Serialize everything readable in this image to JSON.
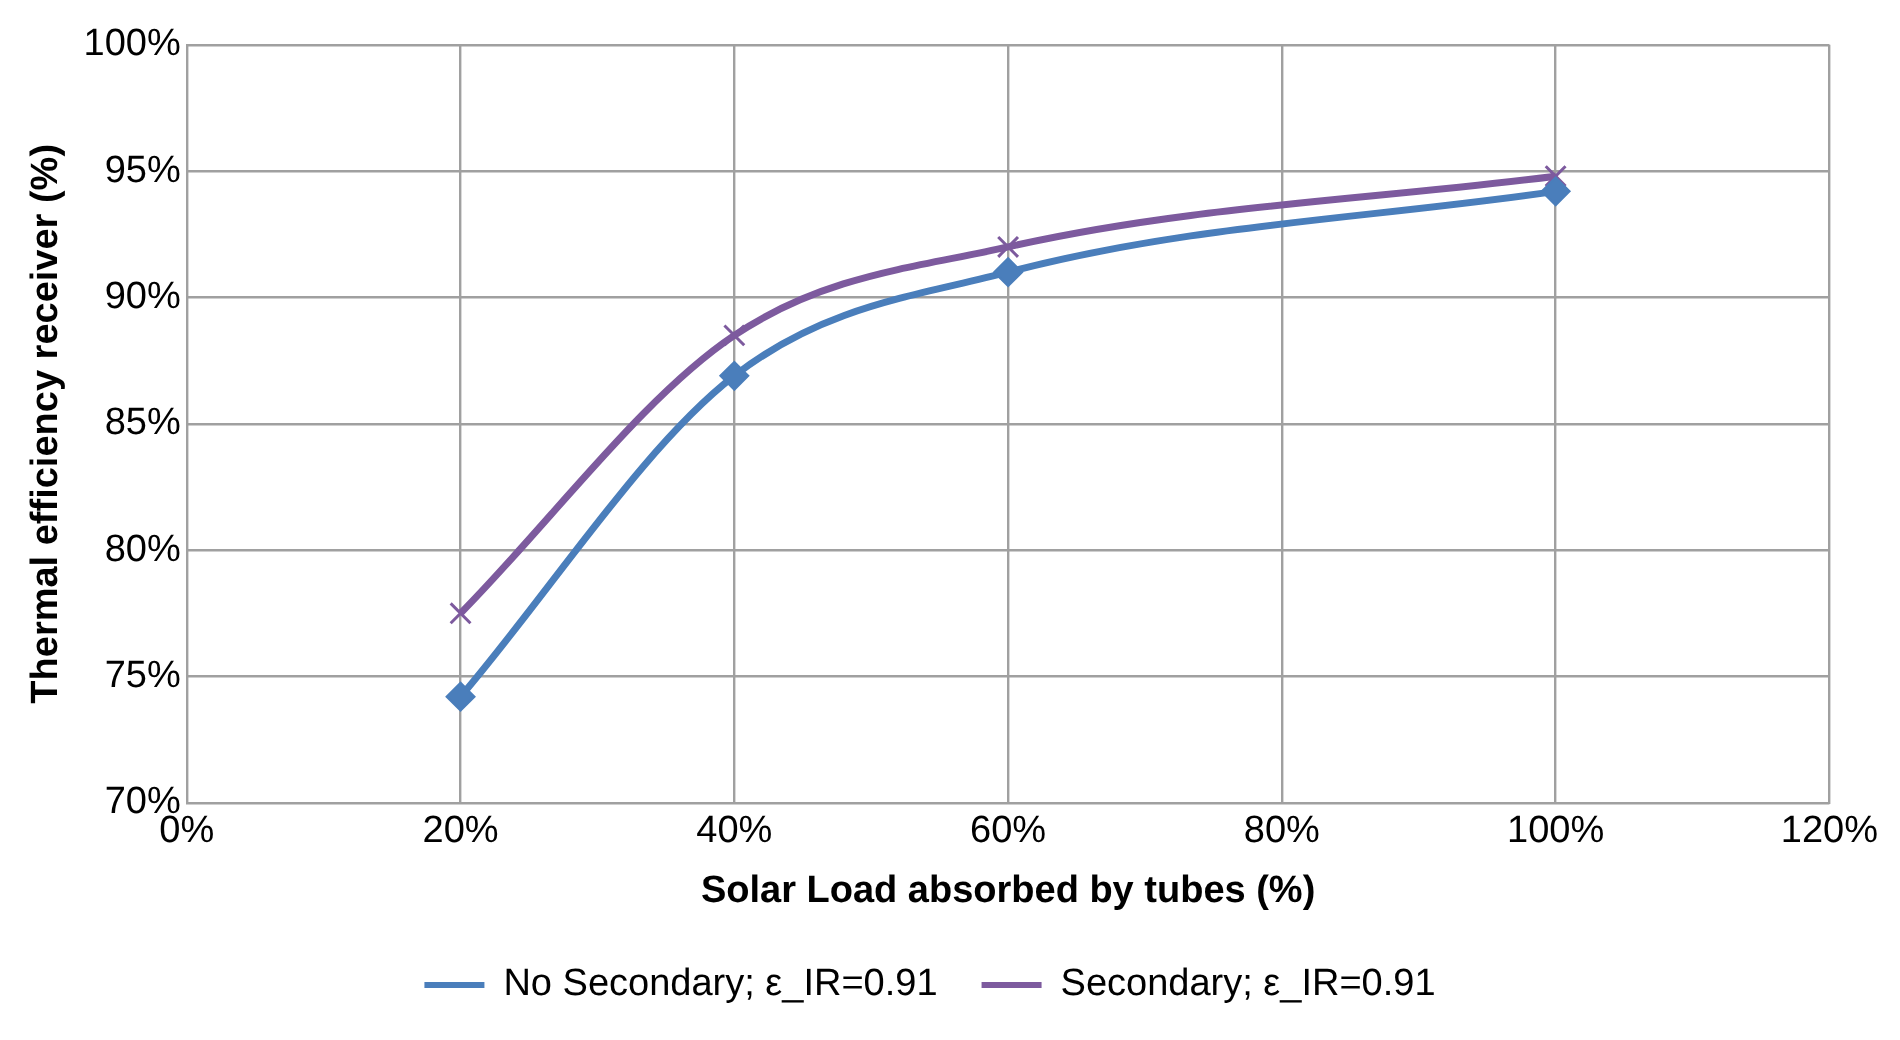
{
  "chart_data": {
    "type": "line",
    "xlabel": "Solar Load absorbed by tubes (%)",
    "ylabel": "Thermal efficiency receiver (%)",
    "xlim": [
      0,
      120
    ],
    "xticks": [
      {
        "value": 0,
        "label": "0%"
      },
      {
        "value": 20,
        "label": "20%"
      },
      {
        "value": 40,
        "label": "40%"
      },
      {
        "value": 60,
        "label": "60%"
      },
      {
        "value": 80,
        "label": "80%"
      },
      {
        "value": 100,
        "label": "100%"
      },
      {
        "value": 120,
        "label": "120%"
      }
    ],
    "ylim": [
      70,
      100
    ],
    "yticks": [
      {
        "value": 70,
        "label": "70%"
      },
      {
        "value": 75,
        "label": "75%"
      },
      {
        "value": 80,
        "label": "80%"
      },
      {
        "value": 85,
        "label": "85%"
      },
      {
        "value": 90,
        "label": "90%"
      },
      {
        "value": 95,
        "label": "95%"
      },
      {
        "value": 100,
        "label": "100%"
      }
    ],
    "grid": true,
    "legend": "bottom",
    "line_style": "solid",
    "series": [
      {
        "name": "No Secondary; ε_IR=0.91",
        "color": "#4a7ebb",
        "marker": "diamond",
        "x": [
          20,
          40,
          60,
          100
        ],
        "values": [
          74.2,
          86.9,
          91.0,
          94.2
        ]
      },
      {
        "name": "Secondary; ε_IR=0.91",
        "color": "#7d5a9e",
        "marker": "cross",
        "x": [
          20,
          40,
          60,
          100
        ],
        "values": [
          77.5,
          88.5,
          92.0,
          94.8
        ]
      }
    ]
  }
}
